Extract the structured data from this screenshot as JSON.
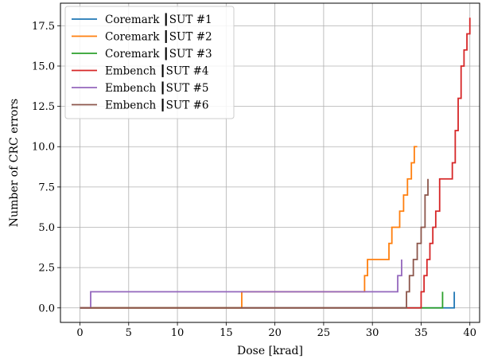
{
  "chart_data": {
    "type": "line",
    "title": "",
    "xlabel": "Dose [krad]",
    "ylabel": "Number of CRC errors",
    "xlim": [
      -2,
      41
    ],
    "ylim": [
      -0.9,
      18.9
    ],
    "xticks": [
      0,
      5,
      10,
      15,
      20,
      25,
      30,
      35,
      40
    ],
    "yticks": [
      0.0,
      2.5,
      5.0,
      7.5,
      10.0,
      12.5,
      15.0,
      17.5
    ],
    "xtick_labels": [
      "0",
      "5",
      "10",
      "15",
      "20",
      "25",
      "30",
      "35",
      "40"
    ],
    "ytick_labels": [
      "0.0",
      "2.5",
      "5.0",
      "7.5",
      "10.0",
      "12.5",
      "15.0",
      "17.5"
    ],
    "grid": true,
    "legend_position": "top-left",
    "step_style": "post",
    "series": [
      {
        "name": "Coremark ┃SUT #1",
        "color": "#1f77b4",
        "x": [
          0,
          38.4,
          38.4
        ],
        "y": [
          0,
          0,
          1
        ]
      },
      {
        "name": "Coremark ┃SUT #2",
        "color": "#ff7f0e",
        "x": [
          0,
          16.6,
          29.2,
          29.5,
          30.0,
          31.7,
          32.0,
          32.4,
          32.8,
          33.2,
          33.6,
          34.0,
          34.3,
          34.6
        ],
        "y": [
          0,
          1,
          2,
          3,
          3,
          4,
          5,
          5,
          6,
          7,
          8,
          9,
          10,
          10
        ]
      },
      {
        "name": "Coremark ┃SUT #3",
        "color": "#2ca02c",
        "x": [
          0,
          37.2,
          37.2
        ],
        "y": [
          0,
          0,
          1
        ]
      },
      {
        "name": "Embench ┃SUT #4",
        "color": "#d62728",
        "x": [
          0,
          35.0,
          35.3,
          35.6,
          35.9,
          36.2,
          36.5,
          36.9,
          38.2,
          38.5,
          38.8,
          39.1,
          39.4,
          39.7,
          40.0
        ],
        "y": [
          0,
          1,
          2,
          3,
          4,
          5,
          6,
          8,
          9,
          11,
          13,
          15,
          16,
          17,
          18
        ]
      },
      {
        "name": "Embench ┃SUT #5",
        "color": "#9467bd",
        "x": [
          0,
          1.1,
          32.6,
          33.0,
          33.0
        ],
        "y": [
          0,
          1,
          2,
          3,
          3
        ]
      },
      {
        "name": "Embench ┃SUT #6",
        "color": "#8c564b",
        "x": [
          0,
          33.5,
          33.8,
          34.2,
          34.6,
          35.0,
          35.4,
          35.7,
          35.7
        ],
        "y": [
          0,
          1,
          2,
          3,
          4,
          5,
          7,
          8,
          8
        ]
      }
    ]
  }
}
